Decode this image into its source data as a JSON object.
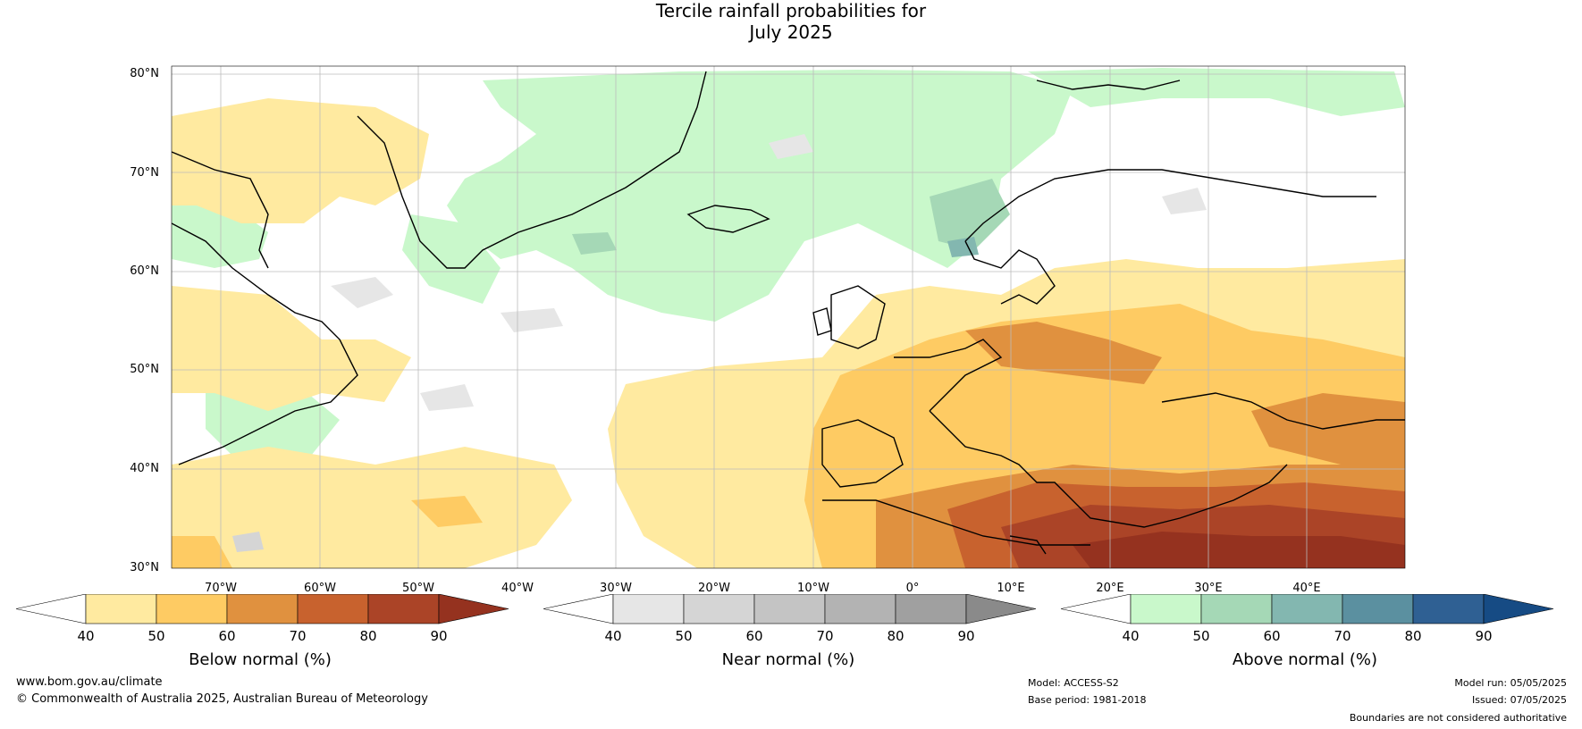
{
  "title": {
    "line1": "Tercile rainfall probabilities for",
    "line2": "July 2025"
  },
  "map": {
    "lat_labels": [
      "80°N",
      "70°N",
      "60°N",
      "50°N",
      "40°N",
      "30°N"
    ],
    "lon_labels": [
      "70°W",
      "60°W",
      "50°W",
      "40°W",
      "30°W",
      "20°W",
      "10°W",
      "0°",
      "10°E",
      "20°E",
      "30°E",
      "40°E"
    ]
  },
  "legends": {
    "below": {
      "title": "Below normal (%)",
      "ticks": [
        "40",
        "50",
        "60",
        "70",
        "80",
        "90"
      ],
      "colors": [
        "#ffffff",
        "#ffeaa0",
        "#fecb63",
        "#e0913f",
        "#c8622e",
        "#ab4427",
        "#95321f"
      ]
    },
    "near": {
      "title": "Near normal (%)",
      "ticks": [
        "40",
        "50",
        "60",
        "70",
        "80",
        "90"
      ],
      "colors": [
        "#ffffff",
        "#e6e6e6",
        "#d5d5d5",
        "#c4c4c4",
        "#b3b3b3",
        "#a0a0a0",
        "#8a8a8a"
      ]
    },
    "above": {
      "title": "Above normal (%)",
      "ticks": [
        "40",
        "50",
        "60",
        "70",
        "80",
        "90"
      ],
      "colors": [
        "#ffffff",
        "#c9f8cb",
        "#a5d8b6",
        "#83b7b0",
        "#5b90a0",
        "#2f6093",
        "#164b84"
      ]
    }
  },
  "footer": {
    "website": "www.bom.gov.au/climate",
    "copyright": "© Commonwealth of Australia 2025, Australian Bureau of Meteorology",
    "model": "Model: ACCESS-S2",
    "base_period": "Base period: 1981-2018",
    "model_run": "Model run: 05/05/2025",
    "issued": "Issued: 07/05/2025",
    "disclaimer": "Boundaries are not considered authoritative"
  }
}
